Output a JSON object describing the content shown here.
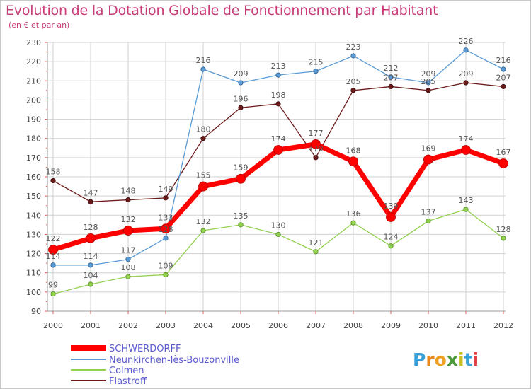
{
  "title": "Evolution de la Dotation Globale de Fonctionnement par Habitant",
  "subtitle": "(en € et par an)",
  "watermark": "Proxiti",
  "chart_data": {
    "type": "line",
    "title": "Evolution de la Dotation Globale de Fonctionnement par Habitant",
    "subtitle": "(en € et par an)",
    "xlabel": "",
    "ylabel": "",
    "x": [
      "2000",
      "2001",
      "2002",
      "2003",
      "2004",
      "2005",
      "2006",
      "2007",
      "2008",
      "2009",
      "2010",
      "2011",
      "2012"
    ],
    "ylim": [
      90,
      230
    ],
    "yticks": [
      90,
      100,
      110,
      120,
      130,
      140,
      150,
      160,
      170,
      180,
      190,
      200,
      210,
      220,
      230
    ],
    "grid": true,
    "legend": "bottom-left",
    "series": [
      {
        "name": "SCHWERDORFF",
        "color": "#ff0000",
        "values": [
          122,
          128,
          132,
          133,
          155,
          159,
          174,
          177,
          168,
          139,
          169,
          174,
          167
        ]
      },
      {
        "name": "Neunkirchen-lès-Bouzonville",
        "color": "#5a9bd5",
        "values": [
          114,
          114,
          117,
          128,
          216,
          209,
          213,
          215,
          223,
          212,
          209,
          226,
          216
        ]
      },
      {
        "name": "Colmen",
        "color": "#92d050",
        "values": [
          99,
          104,
          108,
          109,
          132,
          135,
          130,
          121,
          136,
          124,
          137,
          143,
          128
        ]
      },
      {
        "name": "Flastroff",
        "color": "#6b1a1a",
        "values": [
          158,
          147,
          148,
          149,
          180,
          196,
          198,
          170,
          205,
          207,
          205,
          209,
          207
        ]
      }
    ]
  }
}
